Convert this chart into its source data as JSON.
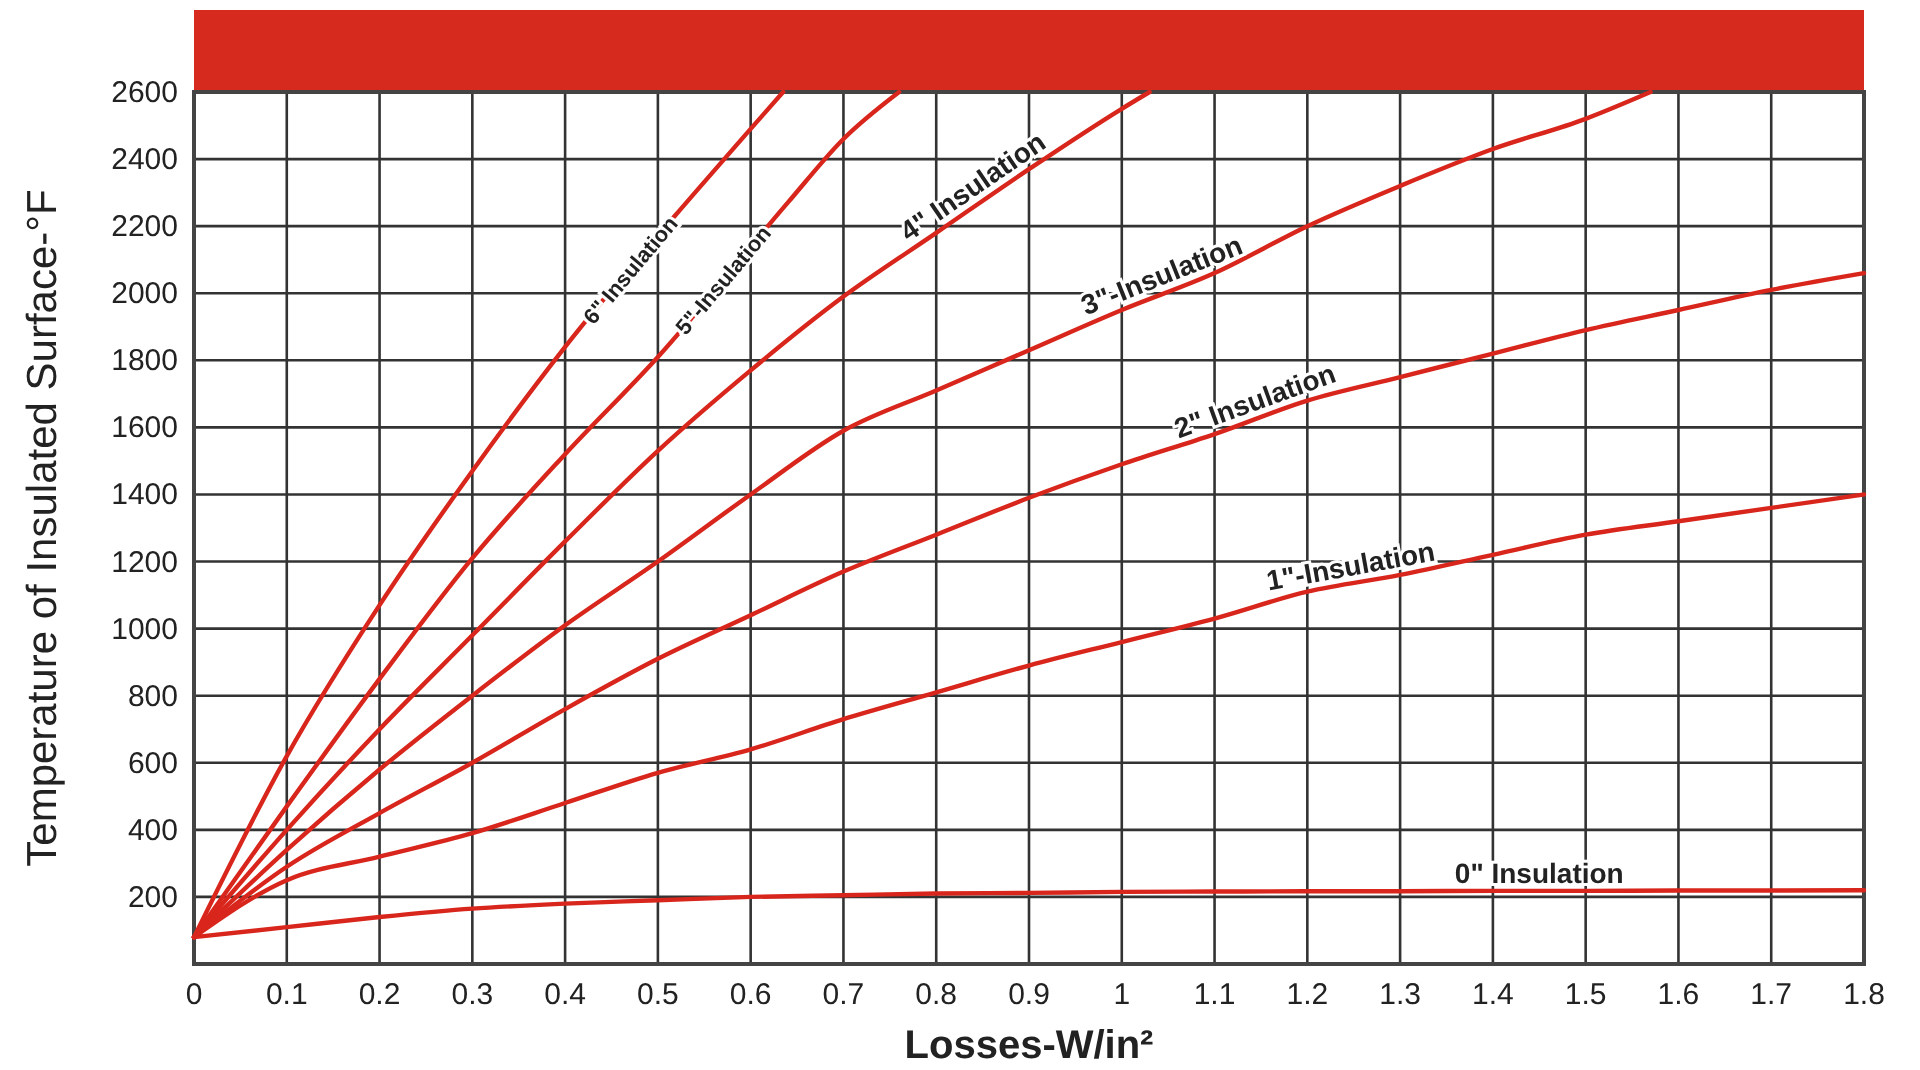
{
  "chart_data": {
    "type": "line",
    "xlabel": "Losses-W/in²",
    "ylabel": "Temperature of Insulated Surface-°F",
    "x": [
      0,
      0.1,
      0.2,
      0.3,
      0.4,
      0.5,
      0.6,
      0.7,
      0.8,
      0.9,
      1.0,
      1.1,
      1.2,
      1.3,
      1.4,
      1.5,
      1.6,
      1.7,
      1.8
    ],
    "xlim": [
      0,
      1.8
    ],
    "xticks": [
      0,
      0.1,
      0.2,
      0.3,
      0.4,
      0.5,
      0.6,
      0.7,
      0.8,
      0.9,
      1,
      1.1,
      1.2,
      1.3,
      1.4,
      1.5,
      1.6,
      1.7,
      1.8
    ],
    "ylim": [
      0,
      2600
    ],
    "yticks": [
      {
        "value": 0,
        "label": null
      },
      200,
      400,
      600,
      800,
      1000,
      1200,
      1400,
      1600,
      1800,
      2000,
      2200,
      2400,
      2600
    ],
    "grid": true,
    "marker": "none",
    "line_style": "solid",
    "series": [
      {
        "name": "0\" Insulation",
        "color": "#d9261c",
        "values": [
          80,
          110,
          140,
          165,
          180,
          190,
          200,
          205,
          210,
          212,
          215,
          216,
          217,
          217,
          218,
          218,
          219,
          219,
          220
        ]
      },
      {
        "name": "1\"-Insulation",
        "color": "#d9261c",
        "values": [
          80,
          250,
          320,
          390,
          480,
          570,
          640,
          730,
          810,
          890,
          960,
          1030,
          1110,
          1160,
          1220,
          1280,
          1320,
          1360,
          1400
        ]
      },
      {
        "name": "2\" Insulation",
        "color": "#d9261c",
        "values": [
          80,
          290,
          450,
          600,
          760,
          910,
          1040,
          1170,
          1280,
          1390,
          1490,
          1580,
          1680,
          1750,
          1820,
          1890,
          1950,
          2010,
          2060
        ]
      },
      {
        "name": "3\"-Insulation",
        "color": "#d9261c",
        "x": [
          0,
          0.1,
          0.2,
          0.3,
          0.4,
          0.5,
          0.6,
          0.7,
          0.8,
          0.9,
          1.0,
          1.1,
          1.2,
          1.3,
          1.4,
          1.5,
          1.57
        ],
        "values": [
          80,
          340,
          580,
          800,
          1010,
          1200,
          1400,
          1590,
          1710,
          1830,
          1950,
          2060,
          2200,
          2320,
          2430,
          2520,
          2600
        ]
      },
      {
        "name": "4\" Insulation",
        "color": "#d9261c",
        "x": [
          0,
          0.1,
          0.2,
          0.3,
          0.4,
          0.5,
          0.6,
          0.7,
          0.8,
          0.9,
          1.0,
          1.03
        ],
        "values": [
          80,
          400,
          700,
          980,
          1260,
          1530,
          1770,
          1990,
          2180,
          2370,
          2550,
          2600
        ]
      },
      {
        "name": "5\"-Insulation",
        "color": "#d9261c",
        "x": [
          0,
          0.1,
          0.2,
          0.3,
          0.4,
          0.5,
          0.64,
          0.7,
          0.76
        ],
        "values": [
          80,
          470,
          850,
          1210,
          1520,
          1810,
          2270,
          2460,
          2600
        ]
      },
      {
        "name": "6\" Insulation",
        "color": "#d9261c",
        "x": [
          0,
          0.1,
          0.2,
          0.3,
          0.4,
          0.54,
          0.6,
          0.635
        ],
        "values": [
          80,
          620,
          1070,
          1470,
          1840,
          2300,
          2490,
          2600
        ]
      }
    ]
  }
}
